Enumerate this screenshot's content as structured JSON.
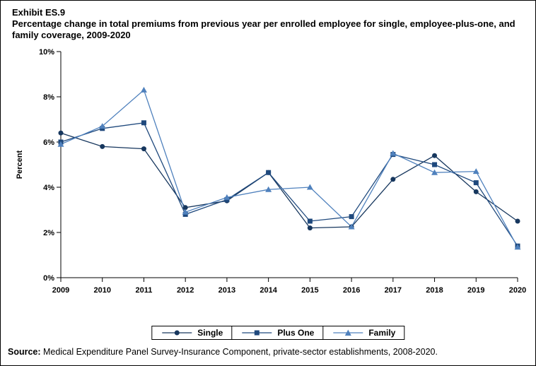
{
  "header": {
    "exhibit": "Exhibit ES.9",
    "title": "Percentage change in total premiums from previous year per enrolled employee for single, employee-plus-one, and family coverage,  2009-2020"
  },
  "chart_data": {
    "type": "line",
    "x": [
      "2009",
      "2010",
      "2011",
      "2012",
      "2013",
      "2014",
      "2015",
      "2016",
      "2017",
      "2018",
      "2019",
      "2020"
    ],
    "ylabel": "Percent",
    "ylim": [
      0,
      10
    ],
    "yticks": [
      0,
      2,
      4,
      6,
      8,
      10
    ],
    "ytick_suffix": "%",
    "grid": false,
    "legend_position": "bottom",
    "series": [
      {
        "name": "Single",
        "marker": "circle",
        "color": "#17375E",
        "values": [
          6.4,
          5.8,
          5.7,
          3.1,
          3.4,
          4.65,
          2.2,
          2.25,
          4.35,
          5.4,
          3.8,
          2.5
        ]
      },
      {
        "name": "Plus One",
        "marker": "square",
        "color": "#1F497D",
        "values": [
          6.0,
          6.6,
          6.85,
          2.8,
          3.45,
          4.65,
          2.5,
          2.7,
          5.45,
          5.0,
          4.2,
          1.4
        ]
      },
      {
        "name": "Family",
        "marker": "triangle",
        "color": "#4F81BD",
        "values": [
          5.9,
          6.7,
          8.3,
          2.9,
          3.55,
          3.9,
          4.0,
          2.25,
          5.5,
          4.65,
          4.7,
          1.35
        ]
      }
    ]
  },
  "source": {
    "label": "Source:",
    "text": " Medical Expenditure Panel Survey-Insurance Component, private-sector establishments, 2008-2020."
  }
}
